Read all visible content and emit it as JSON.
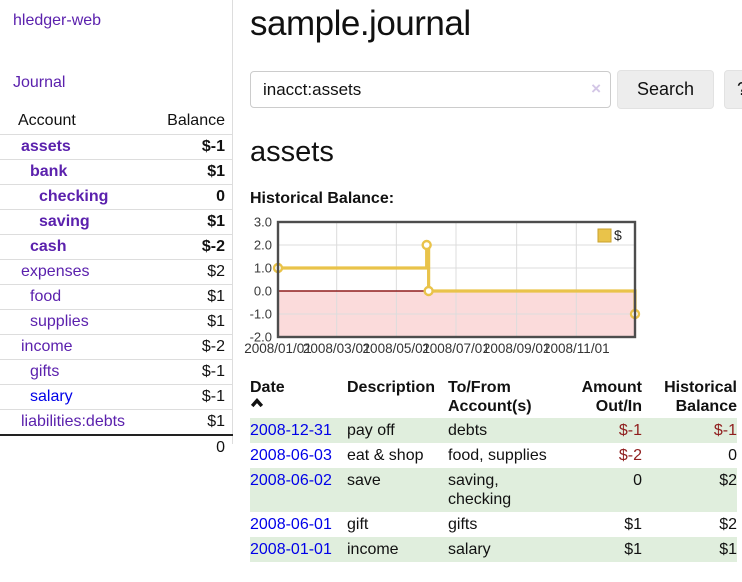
{
  "colors": {
    "link_purple": "#5b21ad",
    "link_blue": "#0000e8",
    "negative_strong": "#8f1d1d",
    "negative_muted": "#bd6c6c",
    "row_green": "#e0eedd",
    "chart_line": "#e9c34a",
    "chart_negative_fill": "#fbdbdb",
    "chart_zero_line": "#8f1d1d",
    "chart_border": "#4d4d4d",
    "chart_grid": "#dcdcdc"
  },
  "sidebar": {
    "app_title": "hledger-web",
    "nav_journal": "Journal",
    "col_account": "Account",
    "col_balance": "Balance",
    "accounts": [
      {
        "name": "assets",
        "balance": "$-1",
        "level": 0,
        "bold": true,
        "link": "visited",
        "neg": "strong"
      },
      {
        "name": "bank",
        "balance": "$1",
        "level": 1,
        "bold": true,
        "link": "visited",
        "neg": null
      },
      {
        "name": "checking",
        "balance": "0",
        "level": 2,
        "bold": true,
        "link": "visited",
        "neg": null
      },
      {
        "name": "saving",
        "balance": "$1",
        "level": 2,
        "bold": true,
        "link": "visited",
        "neg": null
      },
      {
        "name": "cash",
        "balance": "$-2",
        "level": 1,
        "bold": true,
        "link": "visited",
        "neg": "strong"
      },
      {
        "name": "expenses",
        "balance": "$2",
        "level": 0,
        "bold": false,
        "link": "visited",
        "neg": null
      },
      {
        "name": "food",
        "balance": "$1",
        "level": 1,
        "bold": false,
        "link": "visited",
        "neg": null
      },
      {
        "name": "supplies",
        "balance": "$1",
        "level": 1,
        "bold": false,
        "link": "visited",
        "neg": null
      },
      {
        "name": "income",
        "balance": "$-2",
        "level": 0,
        "bold": false,
        "link": "visited",
        "neg": "muted"
      },
      {
        "name": "gifts",
        "balance": "$-1",
        "level": 1,
        "bold": false,
        "link": "visited",
        "neg": "muted"
      },
      {
        "name": "salary",
        "balance": "$-1",
        "level": 1,
        "bold": false,
        "link": "new",
        "neg": "muted"
      },
      {
        "name": "liabilities:debts",
        "balance": "$1",
        "level": 0,
        "bold": false,
        "link": "visited",
        "neg": null
      }
    ],
    "total": "0"
  },
  "main": {
    "title": "sample.journal",
    "search": {
      "value": "inacct:assets",
      "clear_icon": "×",
      "search_label": "Search",
      "help_label": "?"
    },
    "account_heading": "assets",
    "section_label": "Historical Balance:"
  },
  "chart_data": {
    "type": "line",
    "title": "Historical Balance",
    "step": true,
    "series": [
      {
        "name": "$",
        "color": "#e9c34a",
        "points": [
          {
            "date": "2008/01/01",
            "day": 0,
            "value": 1
          },
          {
            "date": "2008/06/01",
            "day": 152,
            "value": 2
          },
          {
            "date": "2008/06/02",
            "day": 153,
            "value": 2
          },
          {
            "date": "2008/06/03",
            "day": 154,
            "value": 0
          },
          {
            "date": "2008/12/31",
            "day": 365,
            "value": -1
          }
        ],
        "markers": [
          {
            "day": 0,
            "value": 1
          },
          {
            "day": 152,
            "value": 2
          },
          {
            "day": 154,
            "value": 0
          },
          {
            "day": 365,
            "value": -1
          }
        ]
      }
    ],
    "x_ticks": [
      {
        "label": "2008/01/01",
        "day": 0
      },
      {
        "label": "2008/03/01",
        "day": 60
      },
      {
        "label": "2008/05/01",
        "day": 121
      },
      {
        "label": "2008/07/01",
        "day": 182
      },
      {
        "label": "2008/09/01",
        "day": 244
      },
      {
        "label": "2008/11/01",
        "day": 305
      }
    ],
    "x_max": 365,
    "y_ticks": [
      3.0,
      2.0,
      1.0,
      0.0,
      -1.0,
      -2.0
    ],
    "ylim": [
      -2,
      3
    ],
    "grid": true,
    "negative_region_shaded": true,
    "legend": {
      "label": "$",
      "position": "top-right"
    }
  },
  "register": {
    "headers": {
      "date": "Date",
      "description": "Description",
      "accounts_line1": "To/From",
      "accounts_line2": "Account(s)",
      "amount_line1": "Amount",
      "amount_line2": "Out/In",
      "balance_line1": "Historical",
      "balance_line2": "Balance"
    },
    "rows": [
      {
        "date": "2008-12-31",
        "description": "pay off",
        "accounts": "debts",
        "amount": "$-1",
        "amount_neg": true,
        "balance": "$-1",
        "balance_neg": true
      },
      {
        "date": "2008-06-03",
        "description": "eat & shop",
        "accounts": "food, supplies",
        "amount": "$-2",
        "amount_neg": true,
        "balance": "0",
        "balance_neg": false
      },
      {
        "date": "2008-06-02",
        "description": "save",
        "accounts": "saving, checking",
        "amount": "0",
        "amount_neg": false,
        "balance": "$2",
        "balance_neg": false
      },
      {
        "date": "2008-06-01",
        "description": "gift",
        "accounts": "gifts",
        "amount": "$1",
        "amount_neg": false,
        "balance": "$2",
        "balance_neg": false
      },
      {
        "date": "2008-01-01",
        "description": "income",
        "accounts": "salary",
        "amount": "$1",
        "amount_neg": false,
        "balance": "$1",
        "balance_neg": false
      }
    ]
  }
}
